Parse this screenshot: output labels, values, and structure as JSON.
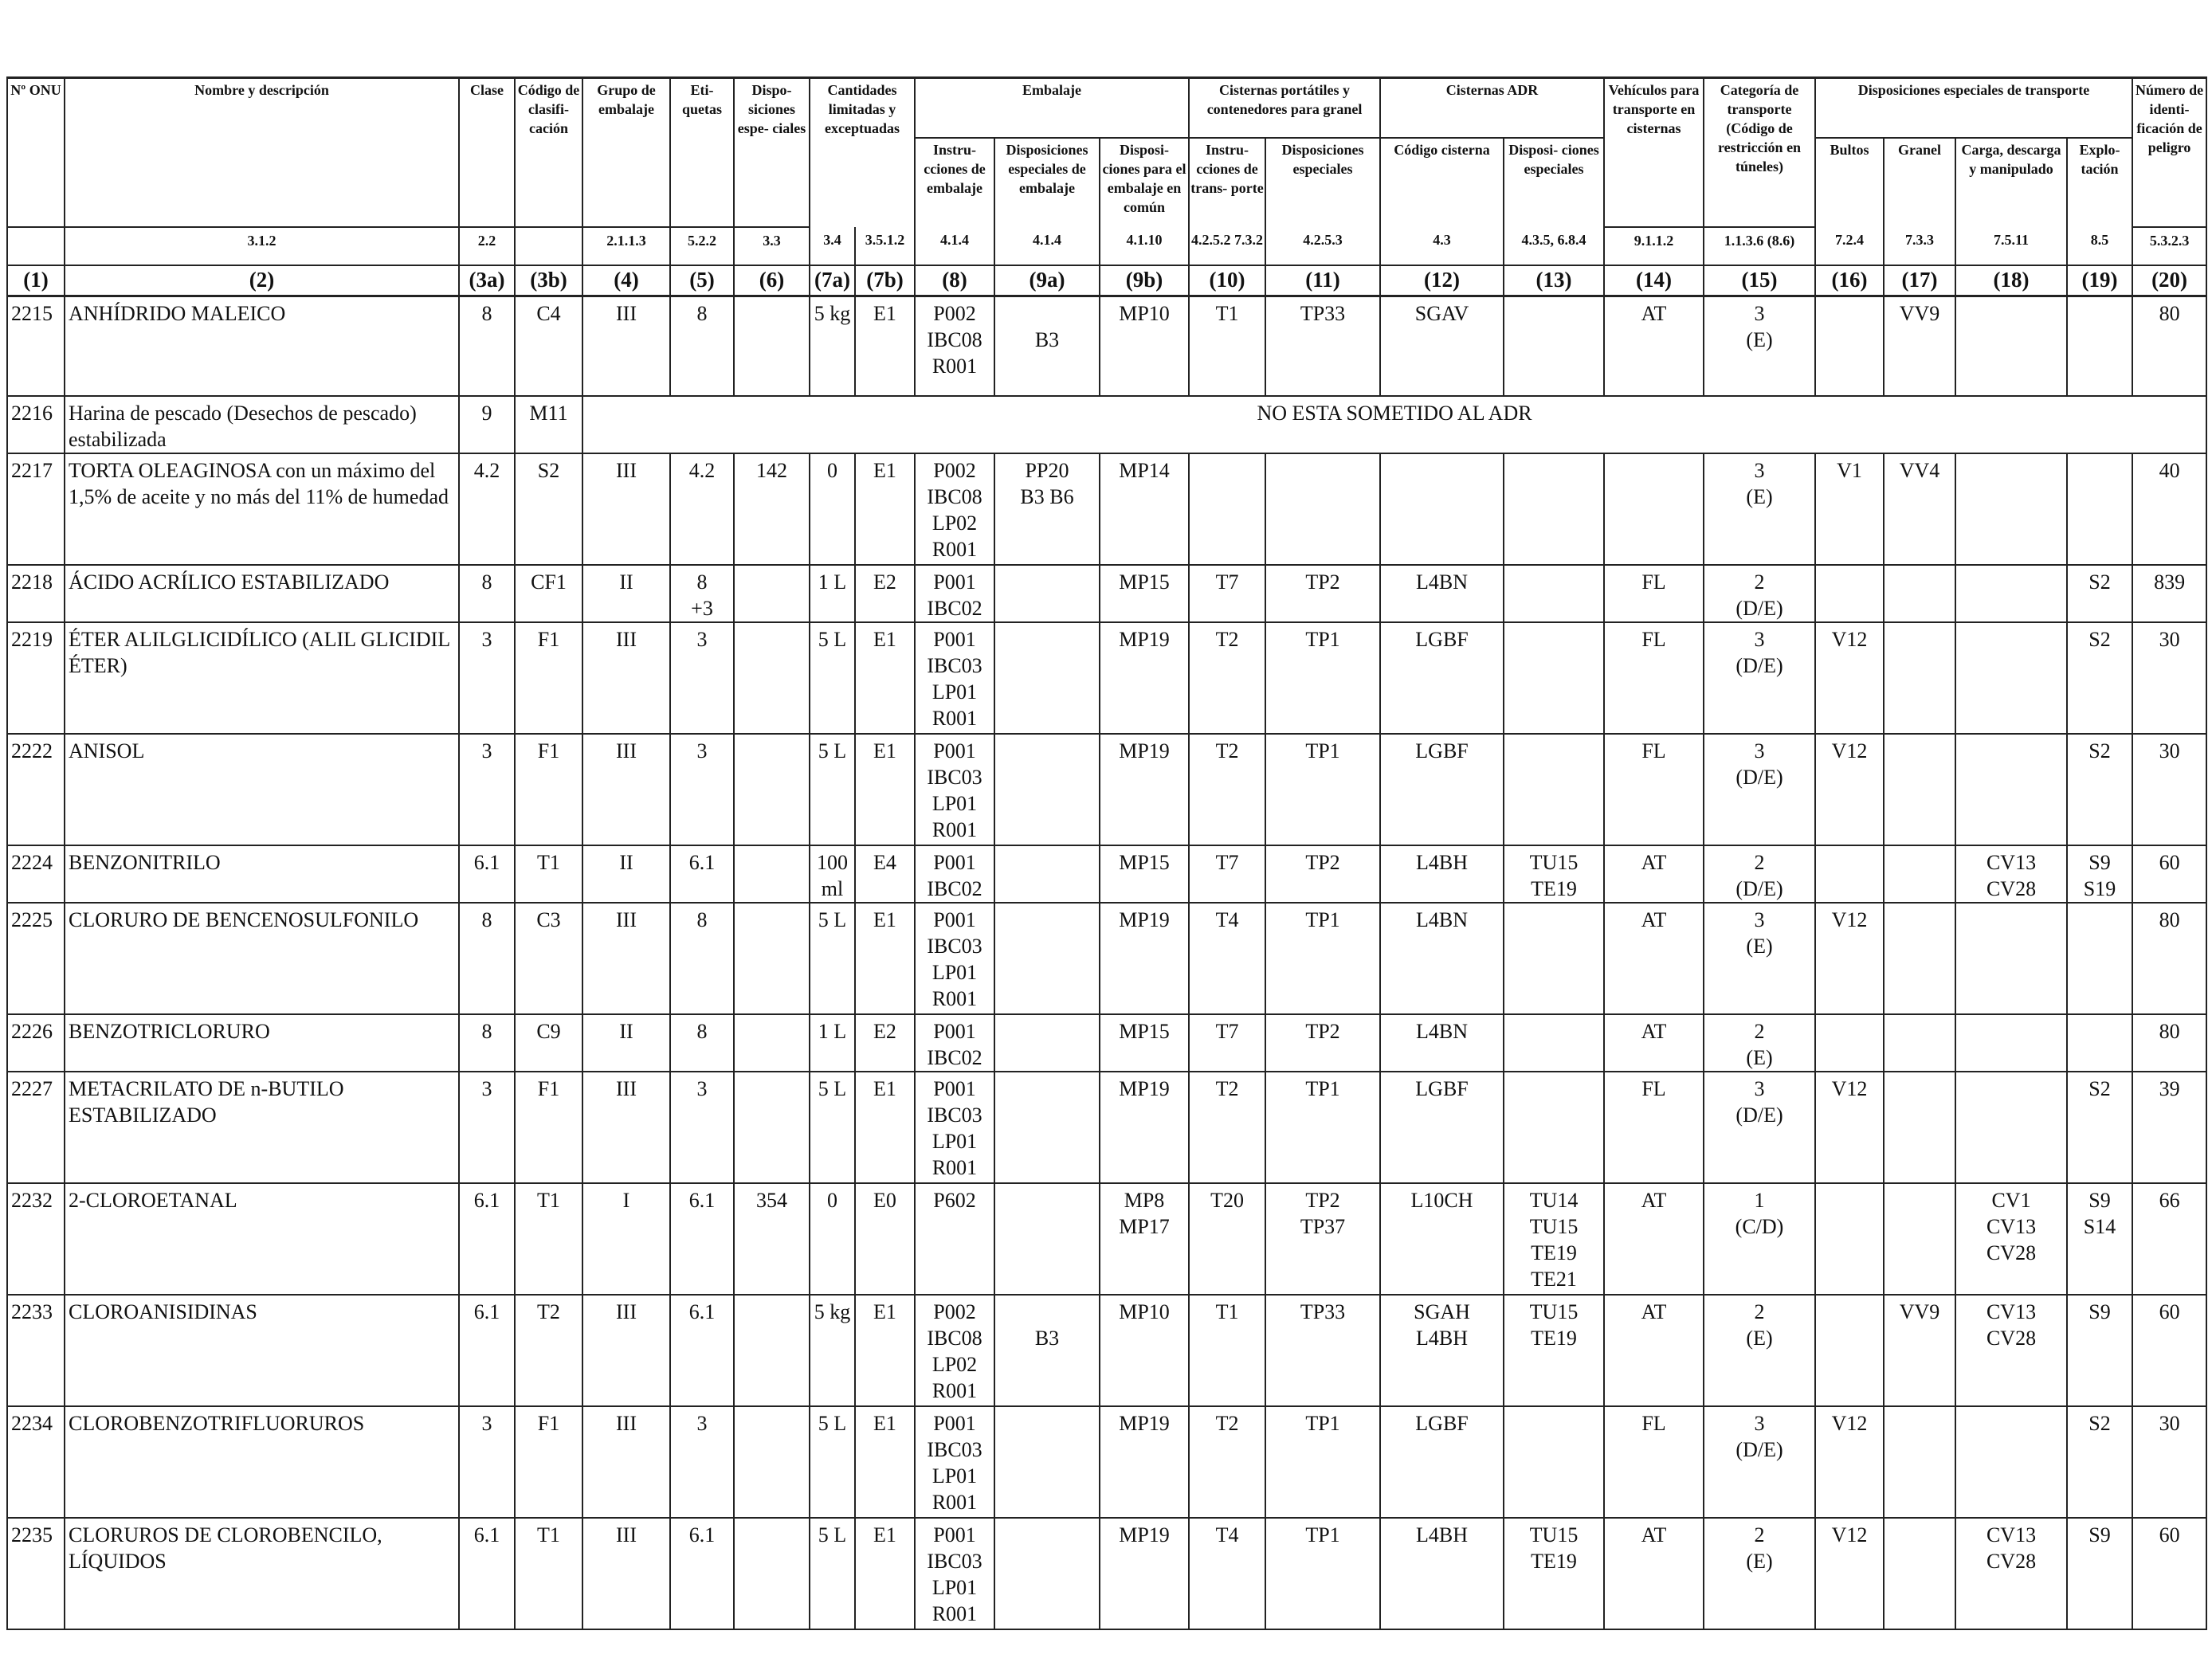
{
  "headers": {
    "un": "Nº ONU",
    "name": "Nombre y descripción",
    "class": "Clase",
    "code": "Código de clasifi- cación",
    "pg": "Grupo de embalaje",
    "labels": "Eti- quetas",
    "sp": "Dispo- siciones espe- ciales",
    "lq_group": "Cantidades limitadas y exceptuadas",
    "pack_group": "Embalaje",
    "pi": "Instru- cciones de embalaje",
    "psp": "Disposiciones especiales de embalaje",
    "mix": "Disposi- ciones para el embalaje en común",
    "portable_group": "Cisternas portátiles y contenedores para granel",
    "pt_instr": "Instru- cciones de trans- porte",
    "pt_sp": "Disposiciones especiales",
    "adr_group": "Cisternas ADR",
    "tank_code": "Código cisterna",
    "tank_sp": "Disposi- ciones especiales",
    "vehicle": "Vehículos para transporte en cisternas",
    "category": "Categoría de transporte (Código de restricción en túneles)",
    "special_group": "Disposiciones especiales de transporte",
    "packages": "Bultos",
    "bulk": "Granel",
    "loading": "Carga, descarga y manipulado",
    "operation": "Explo- tación",
    "hin": "Número de identi- ficación de peligro"
  },
  "refs": [
    "",
    "3.1.2",
    "2.2",
    "",
    "2.1.1.3",
    "5.2.2",
    "3.3",
    "3.4",
    "3.5.1.2",
    "4.1.4",
    "4.1.4",
    "4.1.10",
    "4.2.5.2 7.3.2",
    "4.2.5.3",
    "4.3",
    "4.3.5, 6.8.4",
    "9.1.1.2",
    "1.1.3.6 (8.6)",
    "7.2.4",
    "7.3.3",
    "7.5.11",
    "8.5",
    "5.3.2.3"
  ],
  "column_numbers": [
    "(1)",
    "(2)",
    "(3a)",
    "(3b)",
    "(4)",
    "(5)",
    "(6)",
    "(7a)",
    "(7b)",
    "(8)",
    "(9a)",
    "(9b)",
    "(10)",
    "(11)",
    "(12)",
    "(13)",
    "(14)",
    "(15)",
    "(16)",
    "(17)",
    "(18)",
    "(19)",
    "(20)"
  ],
  "not_subject_text": "NO ESTA SOMETIDO AL ADR",
  "rows": [
    {
      "un": "2215",
      "name": "ANHÍDRIDO MALEICO",
      "cls": "8",
      "code": "C4",
      "pg": "III",
      "labels": "8",
      "sp": "",
      "lq": "5 kg",
      "eq": "E1",
      "pi": "P002\nIBC08\nR001",
      "psp": "\nB3",
      "mix": "MP10",
      "pt": "T1",
      "ptsp": "TP33",
      "tank": "SGAV",
      "tanksp": "",
      "veh": "AT",
      "cat": "3\n(E)",
      "pkg": "",
      "bulk": "VV9",
      "load": "",
      "op": "",
      "hin": "80"
    },
    {
      "un": "2216",
      "name": "Harina de pescado (Desechos de pescado) estabilizada",
      "cls": "9",
      "code": "M11",
      "not_subject": true
    },
    {
      "un": "2217",
      "name": "TORTA OLEAGINOSA con un máximo del 1,5% de aceite y no más del 11% de humedad",
      "cls": "4.2",
      "code": "S2",
      "pg": "III",
      "labels": "4.2",
      "sp": "142",
      "lq": "0",
      "eq": "E1",
      "pi": "P002\nIBC08\nLP02\nR001",
      "psp": "PP20\nB3 B6",
      "mix": "MP14",
      "pt": "",
      "ptsp": "",
      "tank": "",
      "tanksp": "",
      "veh": "",
      "cat": "3\n(E)",
      "pkg": "V1",
      "bulk": "VV4",
      "load": "",
      "op": "",
      "hin": "40"
    },
    {
      "un": "2218",
      "name": "ÁCIDO ACRÍLICO ESTABILIZADO",
      "cls": "8",
      "code": "CF1",
      "pg": "II",
      "labels": "8\n+3",
      "sp": "",
      "lq": "1 L",
      "eq": "E2",
      "pi": "P001\nIBC02",
      "psp": "",
      "mix": "MP15",
      "pt": "T7",
      "ptsp": "TP2",
      "tank": "L4BN",
      "tanksp": "",
      "veh": "FL",
      "cat": "2\n(D/E)",
      "pkg": "",
      "bulk": "",
      "load": "",
      "op": "S2",
      "hin": "839"
    },
    {
      "un": "2219",
      "name": "ÉTER ALILGLICIDÍLICO (ALIL GLICIDIL ÉTER)",
      "cls": "3",
      "code": "F1",
      "pg": "III",
      "labels": "3",
      "sp": "",
      "lq": "5 L",
      "eq": "E1",
      "pi": "P001\nIBC03\nLP01\nR001",
      "psp": "",
      "mix": "MP19",
      "pt": "T2",
      "ptsp": "TP1",
      "tank": "LGBF",
      "tanksp": "",
      "veh": "FL",
      "cat": "3\n(D/E)",
      "pkg": "V12",
      "bulk": "",
      "load": "",
      "op": "S2",
      "hin": "30"
    },
    {
      "un": "2222",
      "name": "ANISOL",
      "cls": "3",
      "code": "F1",
      "pg": "III",
      "labels": "3",
      "sp": "",
      "lq": "5 L",
      "eq": "E1",
      "pi": "P001\nIBC03\nLP01\nR001",
      "psp": "",
      "mix": "MP19",
      "pt": "T2",
      "ptsp": "TP1",
      "tank": "LGBF",
      "tanksp": "",
      "veh": "FL",
      "cat": "3\n(D/E)",
      "pkg": "V12",
      "bulk": "",
      "load": "",
      "op": "S2",
      "hin": "30"
    },
    {
      "un": "2224",
      "name": "BENZONITRILO",
      "cls": "6.1",
      "code": "T1",
      "pg": "II",
      "labels": "6.1",
      "sp": "",
      "lq": "100\nml",
      "eq": "E4",
      "pi": "P001\nIBC02",
      "psp": "",
      "mix": "MP15",
      "pt": "T7",
      "ptsp": "TP2",
      "tank": "L4BH",
      "tanksp": "TU15\nTE19",
      "veh": "AT",
      "cat": "2\n(D/E)",
      "pkg": "",
      "bulk": "",
      "load": "CV13\nCV28",
      "op": "S9\nS19",
      "hin": "60"
    },
    {
      "un": "2225",
      "name": "CLORURO DE BENCENOSULFONILO",
      "cls": "8",
      "code": "C3",
      "pg": "III",
      "labels": "8",
      "sp": "",
      "lq": "5 L",
      "eq": "E1",
      "pi": "P001\nIBC03\nLP01\nR001",
      "psp": "",
      "mix": "MP19",
      "pt": "T4",
      "ptsp": "TP1",
      "tank": "L4BN",
      "tanksp": "",
      "veh": "AT",
      "cat": "3\n(E)",
      "pkg": "V12",
      "bulk": "",
      "load": "",
      "op": "",
      "hin": "80"
    },
    {
      "un": "2226",
      "name": "BENZOTRICLORURO",
      "cls": "8",
      "code": "C9",
      "pg": "II",
      "labels": "8",
      "sp": "",
      "lq": "1 L",
      "eq": "E2",
      "pi": "P001\nIBC02",
      "psp": "",
      "mix": "MP15",
      "pt": "T7",
      "ptsp": "TP2",
      "tank": "L4BN",
      "tanksp": "",
      "veh": "AT",
      "cat": "2\n(E)",
      "pkg": "",
      "bulk": "",
      "load": "",
      "op": "",
      "hin": "80"
    },
    {
      "un": "2227",
      "name": "METACRILATO DE n-BUTILO ESTABILIZADO",
      "cls": "3",
      "code": "F1",
      "pg": "III",
      "labels": "3",
      "sp": "",
      "lq": "5 L",
      "eq": "E1",
      "pi": "P001\nIBC03\nLP01\nR001",
      "psp": "",
      "mix": "MP19",
      "pt": "T2",
      "ptsp": "TP1",
      "tank": "LGBF",
      "tanksp": "",
      "veh": "FL",
      "cat": "3\n(D/E)",
      "pkg": "V12",
      "bulk": "",
      "load": "",
      "op": "S2",
      "hin": "39"
    },
    {
      "un": "2232",
      "name": "2-CLOROETANAL",
      "cls": "6.1",
      "code": "T1",
      "pg": "I",
      "labels": "6.1",
      "sp": "354",
      "lq": "0",
      "eq": "E0",
      "pi": "P602",
      "psp": "",
      "mix": "MP8\nMP17",
      "pt": "T20",
      "ptsp": "TP2\nTP37",
      "tank": "L10CH",
      "tanksp": "TU14\nTU15\nTE19\nTE21",
      "veh": "AT",
      "cat": "1\n(C/D)",
      "pkg": "",
      "bulk": "",
      "load": "CV1\nCV13\nCV28",
      "op": "S9\nS14",
      "hin": "66"
    },
    {
      "un": "2233",
      "name": "CLOROANISIDINAS",
      "cls": "6.1",
      "code": "T2",
      "pg": "III",
      "labels": "6.1",
      "sp": "",
      "lq": "5 kg",
      "eq": "E1",
      "pi": "P002\nIBC08\nLP02\nR001",
      "psp": "\nB3",
      "mix": "MP10",
      "pt": "T1",
      "ptsp": "TP33",
      "tank": "SGAH\nL4BH",
      "tanksp": "TU15\nTE19",
      "veh": "AT",
      "cat": "2\n(E)",
      "pkg": "",
      "bulk": "VV9",
      "load": "CV13\nCV28",
      "op": "S9",
      "hin": "60"
    },
    {
      "un": "2234",
      "name": "CLOROBENZOTRIFLUORUROS",
      "cls": "3",
      "code": "F1",
      "pg": "III",
      "labels": "3",
      "sp": "",
      "lq": "5 L",
      "eq": "E1",
      "pi": "P001\nIBC03\nLP01\nR001",
      "psp": "",
      "mix": "MP19",
      "pt": "T2",
      "ptsp": "TP1",
      "tank": "LGBF",
      "tanksp": "",
      "veh": "FL",
      "cat": "3\n(D/E)",
      "pkg": "V12",
      "bulk": "",
      "load": "",
      "op": "S2",
      "hin": "30"
    },
    {
      "un": "2235",
      "name": "CLORUROS DE CLOROBENCILO, LÍQUIDOS",
      "cls": "6.1",
      "code": "T1",
      "pg": "III",
      "labels": "6.1",
      "sp": "",
      "lq": "5 L",
      "eq": "E1",
      "pi": "P001\nIBC03\nLP01\nR001",
      "psp": "",
      "mix": "MP19",
      "pt": "T4",
      "ptsp": "TP1",
      "tank": "L4BH",
      "tanksp": "TU15\nTE19",
      "veh": "AT",
      "cat": "2\n(E)",
      "pkg": "V12",
      "bulk": "",
      "load": "CV13\nCV28",
      "op": "S9",
      "hin": "60"
    }
  ]
}
